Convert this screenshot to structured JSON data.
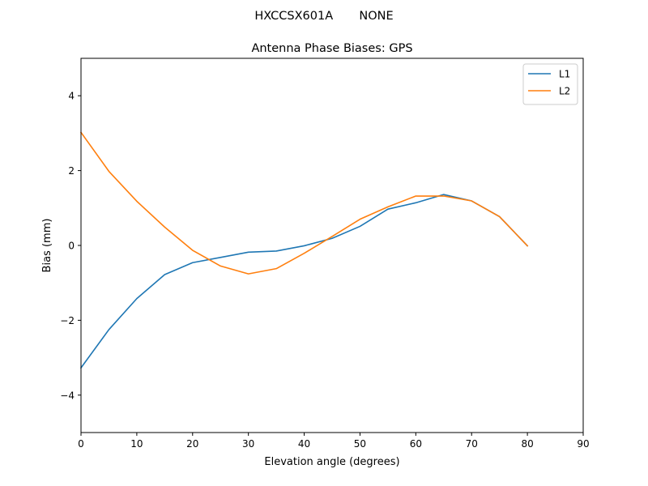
{
  "suptitle": "HXCCSX601A       NONE",
  "chart_data": {
    "type": "line",
    "title": "Antenna Phase Biases: GPS",
    "xlabel": "Elevation angle (degrees)",
    "ylabel": "Bias (mm)",
    "xlim": [
      0,
      90
    ],
    "ylim": [
      -5,
      5
    ],
    "xticks": [
      0,
      10,
      20,
      30,
      40,
      50,
      60,
      70,
      80,
      90
    ],
    "yticks": [
      -4,
      -2,
      0,
      2,
      4
    ],
    "grid": false,
    "legend": "upper-right",
    "x": [
      0,
      5,
      10,
      15,
      20,
      25,
      30,
      35,
      40,
      45,
      50,
      55,
      60,
      65,
      70,
      75,
      80
    ],
    "series": [
      {
        "name": "L1",
        "color": "#1f77b4",
        "values": [
          -3.27,
          -2.25,
          -1.42,
          -0.78,
          -0.46,
          -0.32,
          -0.18,
          -0.15,
          -0.01,
          0.19,
          0.51,
          0.97,
          1.14,
          1.36,
          1.19,
          0.77,
          -0.01
        ]
      },
      {
        "name": "L2",
        "color": "#ff7f0e",
        "values": [
          3.02,
          1.98,
          1.18,
          0.49,
          -0.13,
          -0.55,
          -0.76,
          -0.62,
          -0.21,
          0.24,
          0.7,
          1.03,
          1.32,
          1.32,
          1.19,
          0.77,
          -0.01
        ]
      }
    ]
  }
}
